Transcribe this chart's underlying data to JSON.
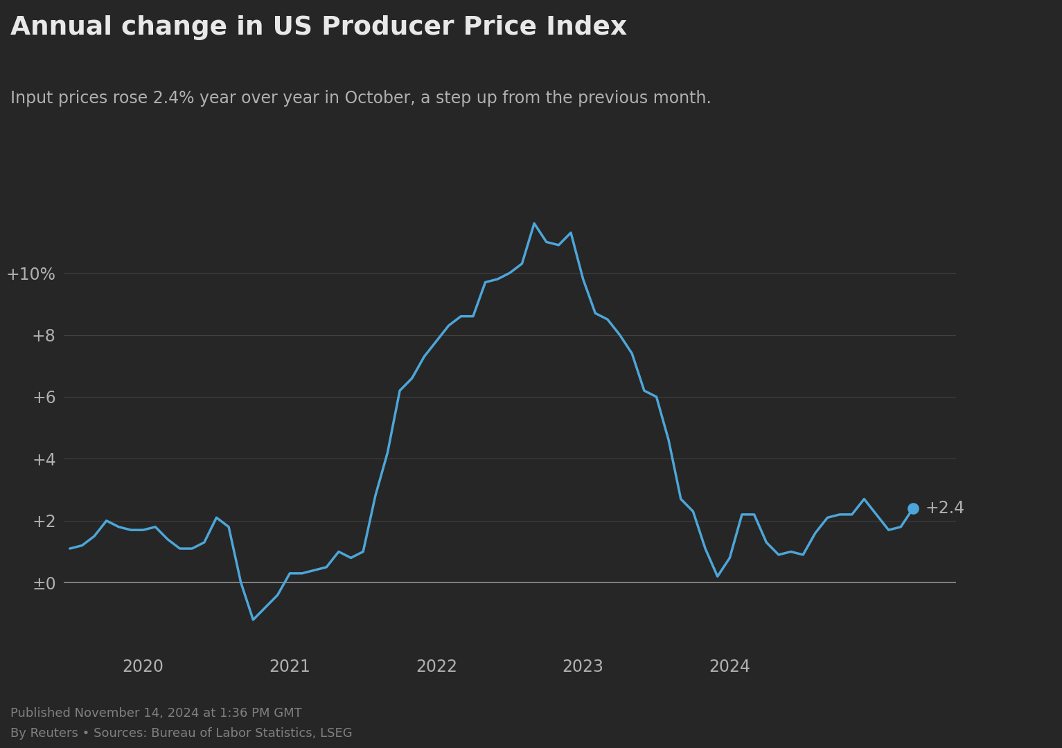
{
  "title": "Annual change in US Producer Price Index",
  "subtitle": "Input prices rose 2.4% year over year in October, a step up from the previous month.",
  "footer_line1": "Published November 14, 2024 at 1:36 PM GMT",
  "footer_line2": "By Reuters • Sources: Bureau of Labor Statistics, LSEG",
  "background_color": "#262626",
  "line_color": "#4da6d9",
  "title_color": "#e8e8e8",
  "subtitle_color": "#b0b0b0",
  "footer_color": "#808080",
  "grid_color": "#404040",
  "zero_line_color": "#909090",
  "text_color": "#b0b0b0",
  "ytick_labels": [
    "±0",
    "+2",
    "+4",
    "+6",
    "+8",
    "+10%"
  ],
  "ytick_values": [
    0,
    2,
    4,
    6,
    8,
    10
  ],
  "ylim": [
    -2.2,
    13.5
  ],
  "last_label": "+2.4",
  "values": [
    1.1,
    1.2,
    1.5,
    2.0,
    1.8,
    1.7,
    1.7,
    1.8,
    1.4,
    1.1,
    1.1,
    1.3,
    2.1,
    1.8,
    0.0,
    -1.2,
    -0.8,
    -0.4,
    0.3,
    0.3,
    0.4,
    0.5,
    1.0,
    0.8,
    1.0,
    2.8,
    4.2,
    6.2,
    6.6,
    7.3,
    7.8,
    8.3,
    8.6,
    8.6,
    9.7,
    9.8,
    10.0,
    10.3,
    11.6,
    11.0,
    10.9,
    11.3,
    9.8,
    8.7,
    8.5,
    8.0,
    7.4,
    6.2,
    6.0,
    4.6,
    2.7,
    2.3,
    1.1,
    0.2,
    0.8,
    2.2,
    2.2,
    1.3,
    0.9,
    1.0,
    0.9,
    1.6,
    2.1,
    2.2,
    2.2,
    2.7,
    2.2,
    1.7,
    1.8,
    2.4
  ],
  "xtick_year_positions": [
    6,
    18,
    30,
    42,
    54
  ],
  "xtick_labels": [
    "2020",
    "2021",
    "2022",
    "2023",
    "2024"
  ]
}
